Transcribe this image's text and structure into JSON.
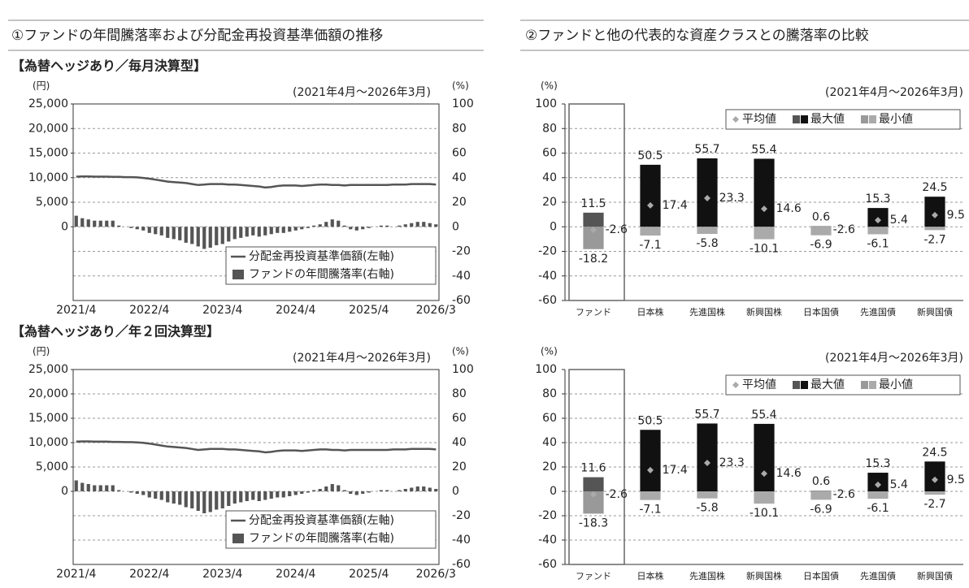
{
  "headers": [
    "①ファンドの年間騰落率および分配金再投資基準価額の推移",
    "②ファンドと他の代表的な資産クラスとの騰落率の比較"
  ],
  "chart_data": [
    {
      "type": "bar_line",
      "title": "【為替ヘッジあり／毎月決算型】",
      "period": "(2021年4月～2026年3月)",
      "y_unit": "(円)",
      "y2_unit": "(%)",
      "categories": [
        "2021/4",
        null,
        null,
        null,
        null,
        null,
        null,
        null,
        null,
        null,
        null,
        null,
        "2022/4",
        null,
        null,
        null,
        null,
        null,
        null,
        null,
        null,
        null,
        null,
        null,
        "2023/4",
        null,
        null,
        null,
        null,
        null,
        null,
        null,
        null,
        null,
        null,
        null,
        "2024/4",
        null,
        null,
        null,
        null,
        null,
        null,
        null,
        null,
        null,
        null,
        null,
        "2025/4",
        null,
        null,
        null,
        null,
        null,
        null,
        null,
        null,
        null,
        null,
        "2026/3"
      ],
      "ylim": [
        -15000,
        25000
      ],
      "yticks": [
        0,
        {
          "value": 5000,
          "label": "5,000"
        },
        {
          "value": 10000,
          "label": "10,000"
        },
        {
          "value": 15000,
          "label": "15,000"
        },
        {
          "value": 20000,
          "label": "20,000"
        },
        {
          "value": 25000,
          "label": "25,000"
        }
      ],
      "y2lim": [
        -60,
        100
      ],
      "y2ticks": [
        -60,
        -40,
        -20,
        0,
        20,
        40,
        60,
        80,
        100
      ],
      "grid": true,
      "legend": "lower right",
      "series": [
        {
          "name": "分配金再投資基準価額(左軸)",
          "type": "line",
          "color": "#555555",
          "values": [
            10200,
            10250,
            10250,
            10200,
            10200,
            10200,
            10150,
            10150,
            10100,
            10100,
            10050,
            9950,
            9800,
            9600,
            9400,
            9200,
            9100,
            9000,
            8900,
            8700,
            8500,
            8600,
            8700,
            8700,
            8700,
            8600,
            8600,
            8500,
            8400,
            8300,
            8200,
            8000,
            8100,
            8300,
            8400,
            8400,
            8400,
            8300,
            8400,
            8500,
            8600,
            8600,
            8500,
            8500,
            8400,
            8500,
            8500,
            8500,
            8500,
            8500,
            8500,
            8500,
            8600,
            8600,
            8600,
            8700,
            8700,
            8700,
            8700,
            8600
          ]
        },
        {
          "name": "ファンドの年間騰落率(右軸)",
          "type": "bar",
          "axis": "y2",
          "color": "#555555",
          "values": [
            9,
            7,
            6,
            5,
            5,
            5,
            5,
            1,
            0,
            -1,
            -2,
            -3,
            -5,
            -6,
            -7,
            -9,
            -10,
            -11,
            -13,
            -14,
            -16,
            -18,
            -17,
            -15,
            -14,
            -12,
            -10,
            -9,
            -8,
            -7,
            -8,
            -7,
            -6,
            -5,
            -5,
            -4,
            -3,
            -2,
            -1,
            1,
            2,
            4,
            6,
            5,
            1,
            -2,
            -3,
            -2,
            -1,
            0,
            1,
            1,
            0,
            1,
            2,
            3,
            4,
            4,
            3,
            2
          ]
        }
      ]
    },
    {
      "type": "range_bar",
      "period": "(2021年4月～2026年3月)",
      "y_unit": "(%)",
      "categories": [
        "ファンド",
        "日本株",
        "先進国株",
        "新興国株",
        "日本国債",
        "先進国債",
        "新興国債"
      ],
      "ylim": [
        -60,
        100
      ],
      "yticks": [
        -60,
        -40,
        -20,
        0,
        20,
        40,
        60,
        80,
        100
      ],
      "grid": true,
      "legend": "upper right",
      "series": [
        {
          "name": "平均値",
          "type": "point",
          "color": "#aaaaaa",
          "values": [
            -2.6,
            17.4,
            23.3,
            14.6,
            -2.6,
            5.4,
            9.5
          ]
        },
        {
          "name": "最大値",
          "type": "bar",
          "colors": [
            "#555555",
            "#111111",
            "#111111",
            "#111111",
            "#888888",
            "#111111",
            "#111111"
          ],
          "values": [
            11.5,
            50.5,
            55.7,
            55.4,
            0.6,
            15.3,
            24.5
          ]
        },
        {
          "name": "最小値",
          "type": "bar",
          "colors": [
            "#999999",
            "#aaaaaa",
            "#aaaaaa",
            "#aaaaaa",
            "#aaaaaa",
            "#aaaaaa",
            "#aaaaaa"
          ],
          "values": [
            -18.2,
            -7.1,
            -5.8,
            -10.1,
            -6.9,
            -6.1,
            -2.7
          ]
        }
      ]
    },
    {
      "type": "bar_line",
      "title": "【為替ヘッジあり／年２回決算型】",
      "period": "(2021年4月～2026年3月)",
      "y_unit": "(円)",
      "y2_unit": "(%)",
      "categories": [
        "2021/4",
        null,
        null,
        null,
        null,
        null,
        null,
        null,
        null,
        null,
        null,
        null,
        "2022/4",
        null,
        null,
        null,
        null,
        null,
        null,
        null,
        null,
        null,
        null,
        null,
        "2023/4",
        null,
        null,
        null,
        null,
        null,
        null,
        null,
        null,
        null,
        null,
        null,
        "2024/4",
        null,
        null,
        null,
        null,
        null,
        null,
        null,
        null,
        null,
        null,
        null,
        "2025/4",
        null,
        null,
        null,
        null,
        null,
        null,
        null,
        null,
        null,
        null,
        "2026/3"
      ],
      "ylim": [
        -15000,
        25000
      ],
      "yticks": [
        0,
        {
          "value": 5000,
          "label": "5,000"
        },
        {
          "value": 10000,
          "label": "10,000"
        },
        {
          "value": 15000,
          "label": "15,000"
        },
        {
          "value": 20000,
          "label": "20,000"
        },
        {
          "value": 25000,
          "label": "25,000"
        }
      ],
      "y2lim": [
        -60,
        100
      ],
      "y2ticks": [
        -60,
        -40,
        -20,
        0,
        20,
        40,
        60,
        80,
        100
      ],
      "grid": true,
      "legend": "lower right",
      "series": [
        {
          "name": "分配金再投資基準価額(左軸)",
          "type": "line",
          "color": "#555555",
          "values": [
            10200,
            10250,
            10250,
            10200,
            10200,
            10200,
            10150,
            10150,
            10100,
            10100,
            10050,
            9950,
            9800,
            9600,
            9400,
            9200,
            9100,
            9000,
            8900,
            8700,
            8500,
            8600,
            8700,
            8700,
            8700,
            8600,
            8600,
            8500,
            8400,
            8300,
            8200,
            8000,
            8100,
            8300,
            8400,
            8400,
            8400,
            8300,
            8400,
            8500,
            8600,
            8600,
            8500,
            8500,
            8400,
            8500,
            8500,
            8500,
            8500,
            8500,
            8500,
            8500,
            8600,
            8600,
            8600,
            8700,
            8700,
            8700,
            8700,
            8600
          ]
        },
        {
          "name": "ファンドの年間騰落率(右軸)",
          "type": "bar",
          "axis": "y2",
          "color": "#555555",
          "values": [
            9,
            7,
            6,
            5,
            5,
            5,
            5,
            1,
            0,
            -1,
            -2,
            -3,
            -5,
            -6,
            -7,
            -9,
            -10,
            -11,
            -13,
            -14,
            -16,
            -18,
            -17,
            -15,
            -14,
            -12,
            -10,
            -9,
            -8,
            -7,
            -8,
            -7,
            -6,
            -5,
            -5,
            -4,
            -3,
            -2,
            -1,
            1,
            2,
            4,
            6,
            5,
            1,
            -2,
            -3,
            -2,
            -1,
            0,
            1,
            1,
            0,
            1,
            2,
            3,
            4,
            4,
            3,
            2
          ]
        }
      ]
    },
    {
      "type": "range_bar",
      "period": "(2021年4月～2026年3月)",
      "y_unit": "(%)",
      "categories": [
        "ファンド",
        "日本株",
        "先進国株",
        "新興国株",
        "日本国債",
        "先進国債",
        "新興国債"
      ],
      "ylim": [
        -60,
        100
      ],
      "yticks": [
        -60,
        -40,
        -20,
        0,
        20,
        40,
        60,
        80,
        100
      ],
      "grid": true,
      "legend": "upper right",
      "series": [
        {
          "name": "平均値",
          "type": "point",
          "color": "#aaaaaa",
          "values": [
            -2.6,
            17.4,
            23.3,
            14.6,
            -2.6,
            5.4,
            9.5
          ]
        },
        {
          "name": "最大値",
          "type": "bar",
          "colors": [
            "#555555",
            "#111111",
            "#111111",
            "#111111",
            "#888888",
            "#111111",
            "#111111"
          ],
          "values": [
            11.6,
            50.5,
            55.7,
            55.4,
            0.6,
            15.3,
            24.5
          ]
        },
        {
          "name": "最小値",
          "type": "bar",
          "colors": [
            "#999999",
            "#aaaaaa",
            "#aaaaaa",
            "#aaaaaa",
            "#aaaaaa",
            "#aaaaaa",
            "#aaaaaa"
          ],
          "values": [
            -18.3,
            -7.1,
            -5.8,
            -10.1,
            -6.9,
            -6.1,
            -2.7
          ]
        }
      ]
    }
  ]
}
